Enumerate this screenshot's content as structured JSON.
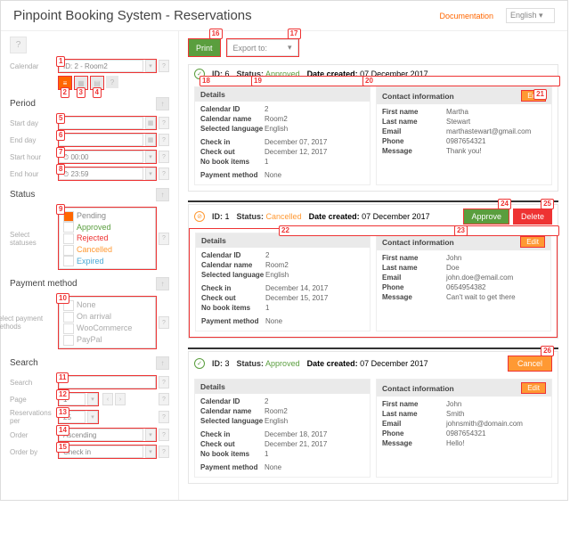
{
  "hdr": {
    "title": "Pinpoint Booking System - Reservations",
    "doc": "Documentation",
    "lang": "English"
  },
  "left": {
    "cal_lbl": "Calendar",
    "cal_val": "ID: 2 - Room2",
    "period": "Period",
    "start_day": "Start day",
    "end_day": "End day",
    "start_hour": "Start hour",
    "end_hour": "End hour",
    "sh_val": "00:00",
    "eh_val": "23:59",
    "status": "Status",
    "sel_status": "Select statuses",
    "pending": "Pending",
    "approved": "Approved",
    "rejected": "Rejected",
    "cancelled": "Cancelled",
    "expired": "Expired",
    "payment": "Payment method",
    "sel_pay": "Select payment methods",
    "none": "None",
    "arrival": "On arrival",
    "woo": "WooCommerce",
    "paypal": "PayPal",
    "search": "Search",
    "search_lbl": "Search",
    "page": "Page",
    "res_per": "Reservations per",
    "order": "Order",
    "order_by": "Order by",
    "page_val": "1",
    "per_val": "25",
    "asc": "Ascending",
    "checkin": "Check in"
  },
  "top": {
    "print": "Print",
    "export": "Export to:"
  },
  "cards": [
    {
      "id": "6",
      "status": "Approved",
      "statusClass": "sp-approved",
      "date": "07 December 2017",
      "ci": "December 07, 2017",
      "co": "December 12, 2017",
      "fn": "Martha",
      "ln": "Stewart",
      "em": "marthastewart@gmail.com",
      "ph": "0987654321",
      "msg": "Thank you!",
      "cls": ""
    },
    {
      "id": "1",
      "status": "Cancelled",
      "statusClass": "sp-cancelled",
      "date": "07 December 2017",
      "ci": "December 14, 2017",
      "co": "December 15, 2017",
      "fn": "John",
      "ln": "Doe",
      "em": "john.doe@email.com",
      "ph": "0654954382",
      "msg": "Can't wait to get there",
      "cls": "rej"
    },
    {
      "id": "3",
      "status": "Approved",
      "statusClass": "sp-approved",
      "date": "07 December 2017",
      "ci": "December 18, 2017",
      "co": "December 21, 2017",
      "fn": "John",
      "ln": "Smith",
      "em": "johnsmith@domain.com",
      "ph": "0987654321",
      "msg": "Hello!",
      "cls": ""
    }
  ],
  "det": {
    "details": "Details",
    "contact": "Contact information",
    "calid": "Calendar ID",
    "calid_v": "2",
    "calname": "Calendar name",
    "calname_v": "Room2",
    "lang": "Selected language",
    "lang_v": "English",
    "ci": "Check in",
    "co": "Check out",
    "nobook": "No book items",
    "nobook_v": "1",
    "paym": "Payment method",
    "paym_v": "None",
    "fn": "First name",
    "ln": "Last name",
    "em": "Email",
    "ph": "Phone",
    "msg": "Message",
    "edit": "Edit",
    "id": "ID:",
    "stat": "Status:",
    "dc": "Date created:"
  },
  "btn": {
    "approve": "Approve",
    "delete": "Delete",
    "cancel": "Cancel"
  }
}
